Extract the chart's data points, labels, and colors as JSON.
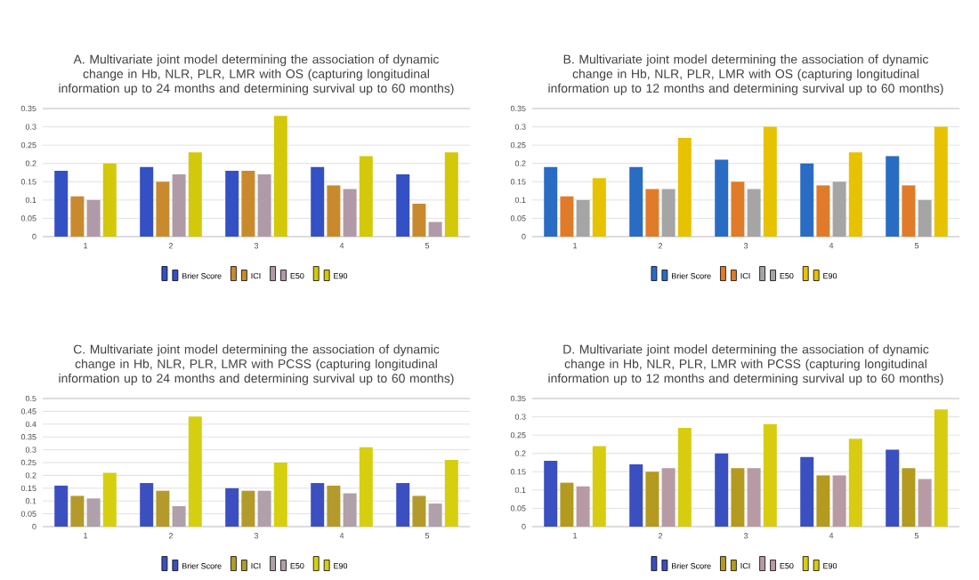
{
  "chart_data": [
    {
      "type": "bar",
      "title": "A. Multivariate joint model determining the association of dynamic change in Hb, NLR, PLR, LMR with OS (capturing longitudinal information up to 24 months and determining survival up to 60 months)",
      "categories": [
        "1",
        "2",
        "3",
        "4",
        "5"
      ],
      "ylim": [
        0,
        0.35
      ],
      "yticks": [
        0,
        0.05,
        0.1,
        0.15,
        0.2,
        0.25,
        0.3,
        0.35
      ],
      "grid": "y",
      "legend": "bottom",
      "series": [
        {
          "name": "Brier Score",
          "color": "#3350c4",
          "values": [
            0.18,
            0.19,
            0.18,
            0.19,
            0.17
          ]
        },
        {
          "name": "ICI",
          "color": "#c98a2e",
          "values": [
            0.11,
            0.15,
            0.18,
            0.14,
            0.09
          ]
        },
        {
          "name": "E50",
          "color": "#b09aa8",
          "values": [
            0.1,
            0.17,
            0.17,
            0.13,
            0.04
          ]
        },
        {
          "name": "E90",
          "color": "#d4c80a",
          "values": [
            0.2,
            0.23,
            0.33,
            0.22,
            0.23
          ]
        }
      ]
    },
    {
      "type": "bar",
      "title": "B. Multivariate joint model determining the association of dynamic change in Hb, NLR, PLR, LMR with OS (capturing longitudinal information up to 12 months and determining survival up to 60 months)",
      "categories": [
        "1",
        "2",
        "3",
        "4",
        "5"
      ],
      "ylim": [
        0,
        0.35
      ],
      "yticks": [
        0,
        0.05,
        0.1,
        0.15,
        0.2,
        0.25,
        0.3,
        0.35
      ],
      "grid": "y",
      "legend": "bottom",
      "series": [
        {
          "name": "Brier Score",
          "color": "#2a6cc4",
          "values": [
            0.19,
            0.19,
            0.21,
            0.2,
            0.22
          ]
        },
        {
          "name": "ICI",
          "color": "#e07b2a",
          "values": [
            0.11,
            0.13,
            0.15,
            0.14,
            0.14
          ]
        },
        {
          "name": "E50",
          "color": "#a5a5a5",
          "values": [
            0.1,
            0.13,
            0.13,
            0.15,
            0.1
          ]
        },
        {
          "name": "E90",
          "color": "#e6c200",
          "values": [
            0.16,
            0.27,
            0.3,
            0.23,
            0.3
          ]
        }
      ]
    },
    {
      "type": "bar",
      "title": "C. Multivariate joint model determining the association of dynamic change in Hb, NLR, PLR, LMR with PCSS (capturing longitudinal information up to 24 months and determining survival up to 60 months)",
      "categories": [
        "1",
        "2",
        "3",
        "4",
        "5"
      ],
      "ylim": [
        0,
        0.5
      ],
      "yticks": [
        0,
        0.05,
        0.1,
        0.15,
        0.2,
        0.25,
        0.3,
        0.35,
        0.4,
        0.45,
        0.5
      ],
      "grid": "y",
      "legend": "bottom",
      "series": [
        {
          "name": "Brier Score",
          "color": "#3b4fc0",
          "values": [
            0.16,
            0.17,
            0.15,
            0.17,
            0.17
          ]
        },
        {
          "name": "ICI",
          "color": "#b39a2b",
          "values": [
            0.12,
            0.14,
            0.14,
            0.16,
            0.12
          ]
        },
        {
          "name": "E50",
          "color": "#b0a0aa",
          "values": [
            0.11,
            0.08,
            0.14,
            0.13,
            0.09
          ]
        },
        {
          "name": "E90",
          "color": "#d6cf10",
          "values": [
            0.21,
            0.43,
            0.25,
            0.31,
            0.26
          ]
        }
      ]
    },
    {
      "type": "bar",
      "title": "D. Multivariate joint model determining the association of dynamic change in Hb, NLR, PLR, LMR with PCSS (capturing longitudinal information up to 12 months and determining survival up to 60 months)",
      "categories": [
        "1",
        "2",
        "3",
        "4",
        "5"
      ],
      "ylim": [
        0,
        0.35
      ],
      "yticks": [
        0,
        0.05,
        0.1,
        0.15,
        0.2,
        0.25,
        0.3,
        0.35
      ],
      "grid": "y",
      "legend": "bottom",
      "series": [
        {
          "name": "Brier Score",
          "color": "#3a4fc0",
          "values": [
            0.18,
            0.17,
            0.2,
            0.19,
            0.21
          ]
        },
        {
          "name": "ICI",
          "color": "#b49a1e",
          "values": [
            0.12,
            0.15,
            0.16,
            0.14,
            0.16
          ]
        },
        {
          "name": "E50",
          "color": "#b89aa5",
          "values": [
            0.11,
            0.16,
            0.16,
            0.14,
            0.13
          ]
        },
        {
          "name": "E90",
          "color": "#d8cc10",
          "values": [
            0.22,
            0.27,
            0.28,
            0.24,
            0.32
          ]
        }
      ]
    }
  ]
}
